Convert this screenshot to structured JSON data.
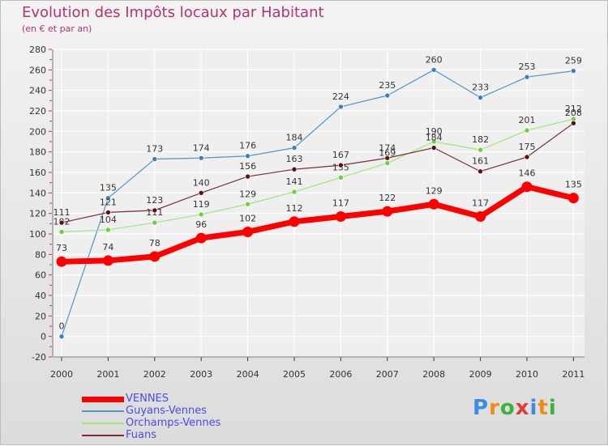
{
  "chart_data": {
    "type": "line",
    "title": "Evolution des Impôts locaux par Habitant",
    "subtitle": "(en € et par an)",
    "x": [
      "2000",
      "2001",
      "2002",
      "2003",
      "2004",
      "2005",
      "2006",
      "2007",
      "2008",
      "2009",
      "2010",
      "2011"
    ],
    "ylim": [
      -20,
      280
    ],
    "yticks": [
      -20,
      0,
      20,
      40,
      60,
      80,
      100,
      120,
      140,
      160,
      180,
      200,
      220,
      240,
      260,
      280
    ],
    "grid": true,
    "legend_position": "bottom-left",
    "series": [
      {
        "name": "Guyans-Vennes",
        "color": "#4f94cd",
        "dot": "#3a80bd",
        "width": 1.2,
        "values": [
          0,
          135,
          173,
          174,
          176,
          184,
          224,
          235,
          260,
          233,
          253,
          259
        ],
        "labels": [
          "0",
          "135",
          "173",
          "174",
          "176",
          "184",
          "224",
          "235",
          "260",
          "233",
          "253",
          "259"
        ]
      },
      {
        "name": "Orchamps-Vennes",
        "color": "#9ee67a",
        "dot": "#6fcf3a",
        "width": 1.2,
        "values": [
          102,
          104,
          111,
          119,
          129,
          141,
          155,
          169,
          190,
          182,
          201,
          212
        ],
        "labels": [
          "102",
          "104",
          "111",
          "119",
          "129",
          "141",
          "155",
          "169",
          "190",
          "182",
          "201",
          "212"
        ]
      },
      {
        "name": "Fuans",
        "color": "#7a2e2e",
        "dot": "#5a1212",
        "width": 1.2,
        "values": [
          111,
          121,
          123,
          140,
          156,
          163,
          167,
          174,
          184,
          161,
          175,
          208
        ],
        "labels": [
          "111",
          "121",
          "123",
          "140",
          "156",
          "163",
          "167",
          "174",
          "184",
          "161",
          "175",
          "208"
        ]
      },
      {
        "name": "VENNES",
        "color": "#ff0000",
        "dot": "#ff0000",
        "width": 7,
        "values": [
          73,
          74,
          78,
          96,
          102,
          112,
          117,
          122,
          129,
          117,
          146,
          135
        ],
        "labels": [
          "73",
          "74",
          "78",
          "96",
          "102",
          "112",
          "117",
          "122",
          "129",
          "117",
          "146",
          "135"
        ]
      }
    ],
    "legend_order": [
      "VENNES",
      "Guyans-Vennes",
      "Orchamps-Vennes",
      "Fuans"
    ]
  },
  "logo": {
    "text": "Proxiti",
    "letters": [
      "P",
      "r",
      "o",
      "x",
      "i",
      "t",
      "i"
    ],
    "colors": [
      "#3c8ce0",
      "#f08c14",
      "#3cb43c",
      "#e03c3c",
      "#3c8ce0",
      "#f08c14",
      "#3cb43c"
    ]
  }
}
